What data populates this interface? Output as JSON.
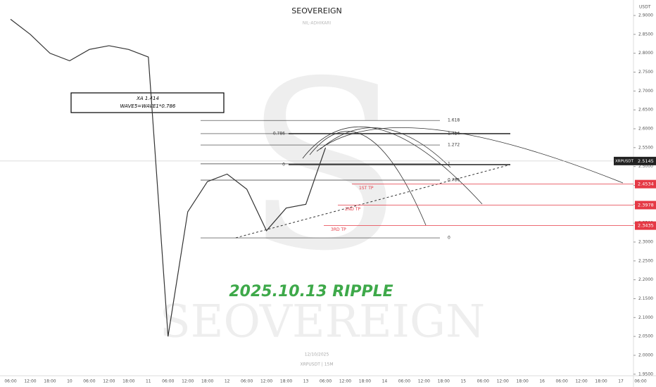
{
  "chart_data": {
    "type": "line",
    "title": "SEOVEREIGN",
    "subtitle": "NIL-ADHIKARI",
    "watermark": "SEOVEREIGN",
    "y_axis_label": "USDT",
    "annotation": [
      "XA 1.414",
      "WAVE5=WAVE1*0.786"
    ],
    "headline": "2025.10.13 RIPPLE",
    "footer": [
      "12/10/2025",
      "XRPUSDT | 15M"
    ],
    "categories": [
      "06:00",
      "12:00",
      "18:00",
      "10",
      "06:00",
      "12:00",
      "18:00",
      "11",
      "06:00",
      "12:00",
      "18:00",
      "12",
      "06:00",
      "12:00",
      "18:00",
      "13",
      "06:00",
      "12:00",
      "18:00",
      "14",
      "06:00",
      "12:00",
      "18:00",
      "15",
      "06:00",
      "12:00",
      "18:00",
      "16",
      "06:00",
      "12:00",
      "18:00",
      "17",
      "06:00"
    ],
    "series": [
      {
        "name": "XRPUSDT",
        "color": "#333333",
        "values": [
          2.89,
          2.85,
          2.8,
          2.78,
          2.81,
          2.82,
          2.81,
          2.79,
          2.05,
          2.38,
          2.46,
          2.48,
          2.44,
          2.33,
          2.39,
          2.4,
          2.55,
          null,
          null,
          null,
          null,
          null,
          null,
          null,
          null,
          null,
          null,
          null,
          null,
          null,
          null,
          null,
          null
        ]
      }
    ],
    "last_price": {
      "value": 2.5145,
      "label": "2.5145"
    },
    "targets": [
      {
        "name": "1ST TP",
        "value": 2.4534,
        "label": "2.4534"
      },
      {
        "name": "2ND TP",
        "value": 2.3978,
        "label": "2.3978"
      },
      {
        "name": "3RD TP",
        "value": 2.3435,
        "label": "2.3435"
      }
    ],
    "fib_levels": [
      {
        "label": "1.618",
        "value": 2.622
      },
      {
        "label": "1.414",
        "value": 2.587
      },
      {
        "label": "1.272",
        "value": 2.557
      },
      {
        "label": "1",
        "value": 2.507
      },
      {
        "label": "0.786",
        "value": 2.464
      },
      {
        "label": "0",
        "value": 2.311
      }
    ],
    "fib_left_levels": [
      {
        "label": "0.786",
        "value": 2.587
      },
      {
        "label": "0",
        "value": 2.505
      }
    ],
    "ylim": [
      1.944,
      2.941
    ],
    "yticks": [
      {
        "value": 1.95,
        "label": "1.9500"
      },
      {
        "value": 2.0,
        "label": "2.0000"
      },
      {
        "value": 2.05,
        "label": "2.0500"
      },
      {
        "value": 2.1,
        "label": "2.1000"
      },
      {
        "value": 2.15,
        "label": "2.1500"
      },
      {
        "value": 2.2,
        "label": "2.2000"
      },
      {
        "value": 2.25,
        "label": "2.2500"
      },
      {
        "value": 2.3,
        "label": "2.3000"
      },
      {
        "value": 2.35,
        "label": "2.3500"
      },
      {
        "value": 2.4,
        "label": "2.4000"
      },
      {
        "value": 2.45,
        "label": "2.4500"
      },
      {
        "value": 2.5,
        "label": "2.5000"
      },
      {
        "value": 2.55,
        "label": "2.5500"
      },
      {
        "value": 2.6,
        "label": "2.6000"
      },
      {
        "value": 2.65,
        "label": "2.6500"
      },
      {
        "value": 2.7,
        "label": "2.7000"
      },
      {
        "value": 2.75,
        "label": "2.7500"
      },
      {
        "value": 2.8,
        "label": "2.8000"
      },
      {
        "value": 2.85,
        "label": "2.8500"
      },
      {
        "value": 2.9,
        "label": "2.9000"
      }
    ]
  }
}
